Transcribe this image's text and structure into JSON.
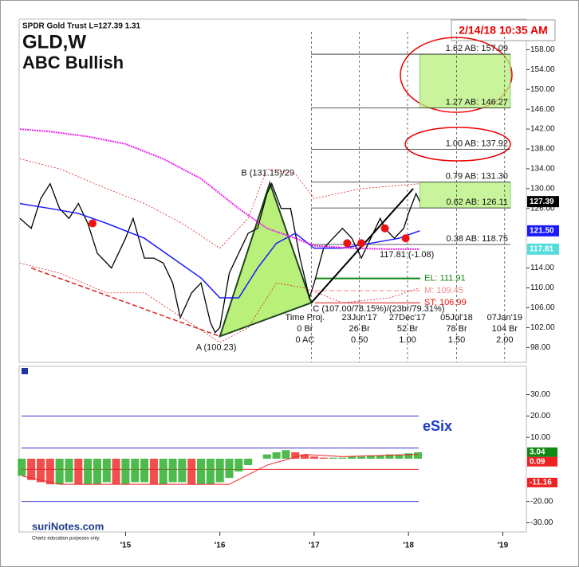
{
  "header": {
    "symbol_info": "SPDR Gold Trust  L=127.39  1.31",
    "timestamp": "2/14/18 10:35 AM",
    "title": "GLD,W",
    "subtitle": "ABC Bullish"
  },
  "logo": {
    "name": "suriNotes.com",
    "note": "Charts education purposes only."
  },
  "chart_data": [
    {
      "type": "line",
      "xlim": [
        2013.88,
        2019.25
      ],
      "ylim": [
        95,
        164
      ],
      "yticks": [
        {
          "value": 158,
          "label": "158.00"
        },
        {
          "value": 154,
          "label": "154.00"
        },
        {
          "value": 150,
          "label": "150.00"
        },
        {
          "value": 146,
          "label": "146.00"
        },
        {
          "value": 142,
          "label": "142.00"
        },
        {
          "value": 138,
          "label": "138.00"
        },
        {
          "value": 134,
          "label": "134.00"
        },
        {
          "value": 130,
          "label": "130.00"
        },
        {
          "value": 126,
          "label": "126.00"
        },
        {
          "value": 114,
          "label": "114.00"
        },
        {
          "value": 110,
          "label": "110.00"
        },
        {
          "value": 106,
          "label": "106.00"
        },
        {
          "value": 102,
          "label": "102.00"
        },
        {
          "value": 98,
          "label": "98.00"
        }
      ],
      "series": [
        {
          "color": "#000000",
          "width": 1.3,
          "x": [
            2013.88,
            2014.0,
            2014.1,
            2014.2,
            2014.3,
            2014.4,
            2014.5,
            2014.6,
            2014.7,
            2014.85,
            2015.0,
            2015.08,
            2015.2,
            2015.3,
            2015.4,
            2015.5,
            2015.58,
            2015.7,
            2015.8,
            2015.9,
            2015.95,
            2016.0,
            2016.1,
            2016.2,
            2016.3,
            2016.4,
            2016.5,
            2016.55,
            2016.65,
            2016.75,
            2016.85,
            2016.95,
            2017.0,
            2017.1,
            2017.2,
            2017.3,
            2017.4,
            2017.5,
            2017.6,
            2017.7,
            2017.75,
            2017.85,
            2017.95,
            2018.0,
            2018.08,
            2018.12
          ],
          "values": [
            124,
            122,
            128,
            131,
            126,
            124,
            127,
            123,
            117,
            114,
            120,
            124,
            116,
            116,
            115,
            111,
            104,
            109,
            111,
            103,
            101,
            102,
            113,
            117,
            121,
            122,
            129,
            131,
            126,
            126,
            116,
            108,
            111,
            118,
            120,
            122,
            120,
            116,
            120,
            124,
            122,
            120,
            122,
            125,
            129,
            127.39
          ]
        },
        {
          "color": "#1a1aff",
          "width": 1.5,
          "x": [
            2013.88,
            2014.2,
            2014.5,
            2014.8,
            2015.2,
            2015.5,
            2015.8,
            2016.0,
            2016.2,
            2016.4,
            2016.6,
            2016.8,
            2017.0,
            2017.3,
            2017.6,
            2017.9,
            2018.12
          ],
          "values": [
            127,
            126,
            125,
            123,
            120,
            116,
            112,
            108,
            108,
            114,
            119,
            121,
            118,
            118,
            119,
            120,
            121.5
          ]
        },
        {
          "color": "#ee22ee",
          "width": 2,
          "dash": "2,1",
          "x": [
            2013.88,
            2014.2,
            2014.6,
            2015.0,
            2015.4,
            2015.8,
            2016.2,
            2016.5,
            2016.8,
            2017.0,
            2017.4,
            2017.8,
            2018.12
          ],
          "values": [
            142,
            141.5,
            140.5,
            139,
            136,
            132,
            126,
            122,
            120,
            118.5,
            118,
            117.8,
            117.81
          ]
        },
        {
          "color": "#dd2222",
          "width": 0.8,
          "dash": "2,2",
          "x": [
            2013.88,
            2014.3,
            2014.8,
            2015.2,
            2015.6,
            2016.0,
            2016.3,
            2016.5,
            2016.8,
            2017.0,
            2017.5,
            2018.12
          ],
          "values": [
            136,
            134,
            130,
            127,
            123,
            118,
            124,
            134,
            133,
            128,
            130,
            131
          ]
        },
        {
          "color": "#dd2222",
          "width": 0.8,
          "dash": "2,2",
          "x": [
            2013.88,
            2014.3,
            2014.8,
            2015.2,
            2015.6,
            2016.0,
            2016.3,
            2016.6,
            2016.9,
            2017.3,
            2017.8,
            2018.12
          ],
          "values": [
            115,
            113,
            109,
            109,
            104,
            99,
            102,
            111,
            110,
            107,
            108,
            110
          ]
        },
        {
          "color": "#dd2222",
          "width": 1.5,
          "dash": "6,3",
          "x": [
            2014.0,
            2016.0
          ],
          "values": [
            114,
            100.23
          ]
        },
        {
          "color": "#000000",
          "width": 2,
          "x": [
            2016.97,
            2018.05
          ],
          "values": [
            107,
            130
          ]
        }
      ],
      "pattern": {
        "color": "#b8f07a",
        "points": [
          {
            "label": "A (100.23)",
            "x": 2016.0,
            "value": 100.23
          },
          {
            "label": "B (131.15)/29",
            "x": 2016.53,
            "value": 131.15
          },
          {
            "label": "C (107.00/78.15%)/(23br/79.31%)",
            "x": 2016.97,
            "value": 107
          }
        ]
      },
      "signals": {
        "color": "#ee1111",
        "x": [
          2014.65,
          2017.35,
          2017.5,
          2017.75,
          2017.97
        ],
        "values": [
          123,
          119,
          119,
          122,
          120
        ]
      },
      "levels": [
        {
          "value": 157.09,
          "label": "1.62 AB: 157.09",
          "shaded": true
        },
        {
          "value": 146.27,
          "label": "1.27 AB: 146.27",
          "shaded": true
        },
        {
          "value": 137.92,
          "label": "1.00 AB: 137.92"
        },
        {
          "value": 131.3,
          "label": "0.79 AB: 131.30",
          "shaded": true
        },
        {
          "value": 126.11,
          "label": "0.62 AB: 126.11",
          "shaded": true
        },
        {
          "value": 118.75,
          "label": "0.38 AB: 118.75"
        }
      ],
      "targets": [
        {
          "value": 111.91,
          "label": "EL: 111.91",
          "color": "#118811"
        },
        {
          "value": 109.45,
          "label": "M: 109.45",
          "color": "#ee8888"
        },
        {
          "value": 106.99,
          "label": "ST: 106.99",
          "color": "#ee1111"
        }
      ],
      "stop_note": "117.81 (-1.08)",
      "time_projection": {
        "x": [
          2016.97,
          2017.48,
          2017.99,
          2018.51,
          2019.02
        ],
        "rows": [
          [
            "Time Proj.",
            "23Jun'17",
            "27Dec'17",
            "05Jul'18",
            "07Jan'19"
          ],
          [
            "0 Br",
            "26 Br",
            "52 Br",
            "78 Br",
            "104 Br"
          ],
          [
            "0 AC",
            "0.50",
            "1.00",
            "1.50",
            "2.00"
          ]
        ]
      },
      "price_tags": [
        {
          "value": 127.39,
          "label": "127.39",
          "color": "#000000",
          "text_color": "#ffffff"
        },
        {
          "value": 121.5,
          "label": "121.50",
          "color": "#1a1aff",
          "text_color": "#ffffff"
        },
        {
          "value": 117.81,
          "label": "117.81",
          "color": "#55dddd",
          "text_color": "#ffffff"
        }
      ]
    },
    {
      "type": "bar",
      "title": "eSix",
      "xlim": [
        2013.88,
        2019.25
      ],
      "ylim": [
        -34.3,
        42.5
      ],
      "xticks": [
        {
          "value": 2015,
          "label": "'15"
        },
        {
          "value": 2016,
          "label": "'16"
        },
        {
          "value": 2017,
          "label": "'17"
        },
        {
          "value": 2018,
          "label": "'18"
        },
        {
          "value": 2019,
          "label": "'19"
        }
      ],
      "yticks": [
        {
          "value": 30,
          "label": "30.00"
        },
        {
          "value": 20,
          "label": "20.00"
        },
        {
          "value": 10,
          "label": "10.00"
        },
        {
          "value": -20,
          "label": "-20.00"
        },
        {
          "value": -30,
          "label": "-30.00"
        }
      ],
      "up_color": "#22aa22",
      "down_color": "#ee2222",
      "x": [
        2013.9,
        2014.0,
        2014.1,
        2014.2,
        2014.3,
        2014.4,
        2014.5,
        2014.6,
        2014.7,
        2014.8,
        2014.9,
        2015.0,
        2015.1,
        2015.2,
        2015.3,
        2015.4,
        2015.5,
        2015.6,
        2015.7,
        2015.8,
        2015.9,
        2016.0,
        2016.1,
        2016.2,
        2016.3,
        2016.4,
        2016.5,
        2016.6,
        2016.7,
        2016.8,
        2016.9,
        2017.0,
        2017.1,
        2017.2,
        2017.3,
        2017.4,
        2017.5,
        2017.6,
        2017.7,
        2017.8,
        2017.9,
        2018.0,
        2018.1
      ],
      "values": [
        -8,
        -10,
        -11,
        -12,
        -12,
        -11,
        -12,
        -12,
        -12,
        -11,
        -12,
        -12,
        -11,
        -11,
        -12,
        -12,
        -11,
        -11,
        -12,
        -12,
        -12,
        -11,
        -9,
        -6,
        -3,
        0,
        2,
        3,
        4,
        3,
        2,
        1,
        0.5,
        0.5,
        0.5,
        1,
        1,
        1.5,
        1.5,
        2,
        2,
        2.5,
        3
      ],
      "series": [
        {
          "color": "#ee2222",
          "x": [
            2013.9,
            2014.3,
            2015.0,
            2016.1,
            2016.5,
            2016.9,
            2017.3,
            2018.1
          ],
          "values": [
            -8,
            -12,
            -12,
            -12,
            -3,
            2,
            1,
            2
          ]
        }
      ],
      "levels": [
        {
          "value": 20,
          "color": "#3333cc"
        },
        {
          "value": 5,
          "color": "#3333cc"
        },
        {
          "value": -5,
          "color": "#ee2222"
        },
        {
          "value": -20,
          "color": "#3333cc"
        }
      ],
      "value_tags": [
        {
          "value": 3.04,
          "label": "3.04",
          "color": "#118811"
        },
        {
          "value": 0.09,
          "label": "0.09",
          "color": "#ee2222"
        },
        {
          "value": -11.16,
          "label": "-11.16",
          "color": "#ee2222"
        }
      ]
    }
  ]
}
